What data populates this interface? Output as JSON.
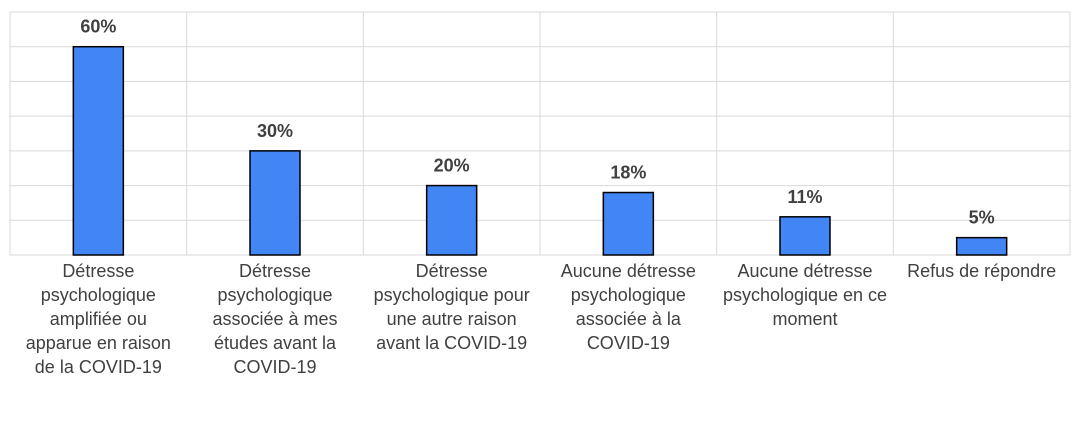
{
  "chart_data": {
    "type": "bar",
    "categories": [
      "Détresse psychologique amplifiée ou apparue en raison de la COVID-19",
      "Détresse psychologique associée à mes études avant la COVID-19",
      "Détresse psychologique pour une autre raison avant la COVID-19",
      "Aucune détresse psychologique associée à la COVID-19",
      "Aucune détresse psychologique en ce moment",
      "Refus de répondre"
    ],
    "values": [
      60,
      30,
      20,
      18,
      11,
      5
    ],
    "value_labels": [
      "60%",
      "30%",
      "20%",
      "18%",
      "11%",
      "5%"
    ],
    "color": "#4285f4",
    "ylim": [
      0,
      70
    ],
    "yticks": [
      0,
      10,
      20,
      30,
      40,
      50,
      60,
      70
    ],
    "grid": true
  }
}
